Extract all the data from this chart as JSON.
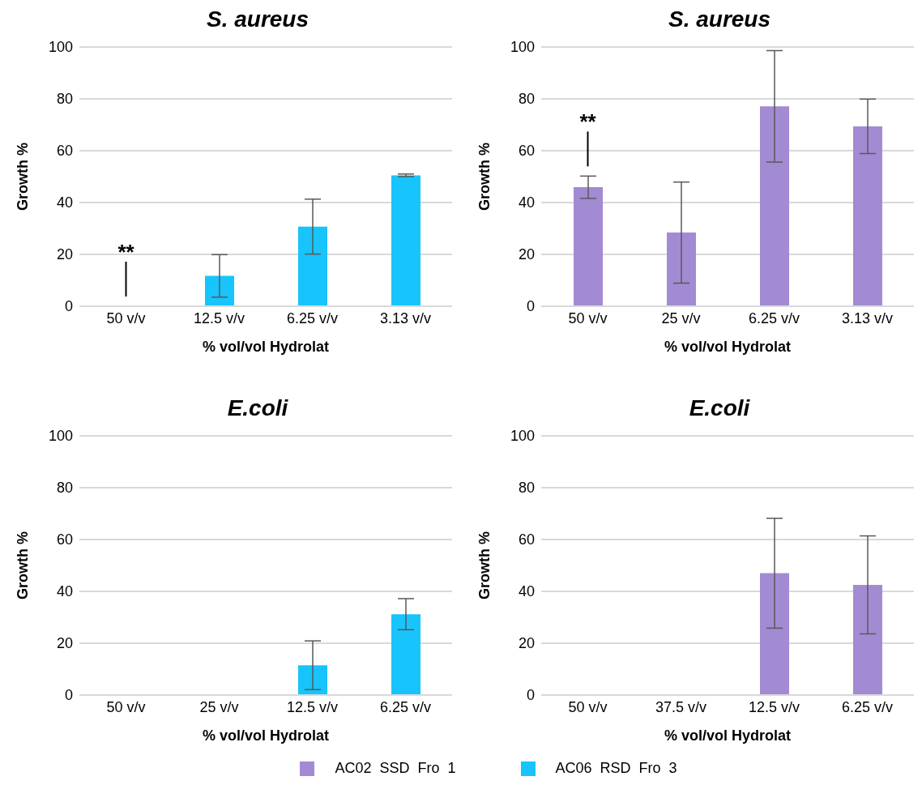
{
  "chart_data": [
    {
      "type": "bar",
      "title": "S. aureus",
      "xlabel": "% vol/vol Hydrolat",
      "ylabel": "Growth %",
      "categories": [
        "50 v/v",
        "12.5 v/v",
        "6.25 v/v",
        "3.13 v/v"
      ],
      "series": [
        {
          "name": "AC06  RSD  Fro  3",
          "color": "#17c4fc",
          "values": [
            0,
            11.7,
            30.7,
            50.5
          ],
          "errors": [
            null,
            8.2,
            10.6,
            0.5
          ]
        }
      ],
      "ylim": [
        0,
        100
      ],
      "yticks": [
        0,
        20,
        40,
        60,
        80,
        100
      ],
      "grid": "y",
      "legend": "bottom",
      "annotations": [
        "**"
      ]
    },
    {
      "type": "bar",
      "title": "S. aureus",
      "xlabel": "% vol/vol Hydrolat",
      "ylabel": "Growth %",
      "categories": [
        "50 v/v",
        "25 v/v",
        "6.25 v/v",
        "3.13 v/v"
      ],
      "series": [
        {
          "name": "AC02  SSD  Fro  1",
          "color": "#a38bd3",
          "values": [
            45.9,
            28.4,
            77.1,
            69.4
          ],
          "errors": [
            4.3,
            19.5,
            21.5,
            10.5
          ]
        }
      ],
      "ylim": [
        0,
        100
      ],
      "yticks": [
        0,
        20,
        40,
        60,
        80,
        100
      ],
      "grid": "y",
      "legend": "bottom",
      "annotations": [
        "**"
      ]
    },
    {
      "type": "bar",
      "title": "E.coli",
      "xlabel": "% vol/vol Hydrolat",
      "ylabel": "Growth %",
      "categories": [
        "50 v/v",
        "25 v/v",
        "12.5 v/v",
        "6.25 v/v"
      ],
      "series": [
        {
          "name": "AC06  RSD  Fro  3",
          "color": "#17c4fc",
          "values": [
            0,
            0,
            11.5,
            31.2
          ],
          "errors": [
            null,
            null,
            9.4,
            6
          ]
        }
      ],
      "ylim": [
        0,
        100
      ],
      "yticks": [
        0,
        20,
        40,
        60,
        80,
        100
      ],
      "grid": "y",
      "legend": "bottom"
    },
    {
      "type": "bar",
      "title": "E.coli",
      "xlabel": "% vol/vol Hydrolat",
      "ylabel": "Growth %",
      "categories": [
        "50 v/v",
        "37.5 v/v",
        "12.5 v/v",
        "6.25 v/v"
      ],
      "series": [
        {
          "name": "AC02  SSD  Fro  1",
          "color": "#a38bd3",
          "values": [
            0,
            0,
            47,
            42.5
          ],
          "errors": [
            null,
            null,
            21.2,
            18.9
          ]
        }
      ],
      "ylim": [
        0,
        100
      ],
      "yticks": [
        0,
        20,
        40,
        60,
        80,
        100
      ],
      "grid": "y",
      "legend": "bottom"
    }
  ]
}
